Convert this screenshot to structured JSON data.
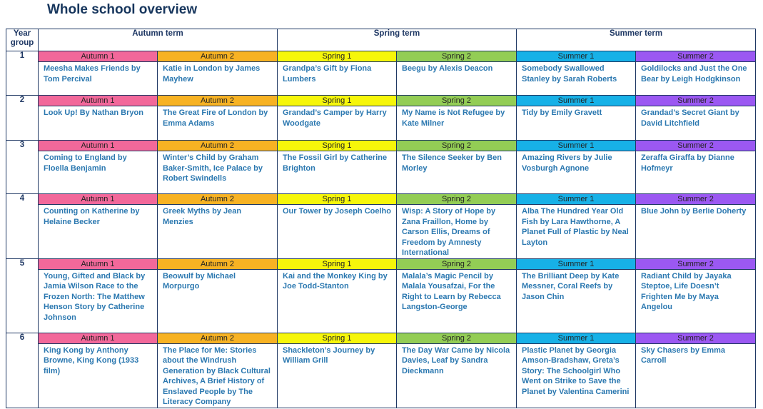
{
  "title": "Whole school overview",
  "headers": {
    "year_group": "Year group",
    "autumn": "Autumn term",
    "spring": "Spring term",
    "summer": "Summer term"
  },
  "half_terms": [
    "Autumn 1",
    "Autumn 2",
    "Spring 1",
    "Spring 2",
    "Summer 1",
    "Summer 2"
  ],
  "colors": {
    "autumn1": "#f2689a",
    "autumn2": "#f7b223",
    "spring1": "#f6f60a",
    "spring2": "#93cd55",
    "summer1": "#17b1e7",
    "summer2": "#9b58f2",
    "book_text": "#2b78b0",
    "heading_text": "#1f3864"
  },
  "rows": [
    {
      "year": "1",
      "books": [
        "Meesha Makes Friends by Tom Percival",
        "Katie in London by James Mayhew",
        "Grandpa’s Gift by Fiona Lumbers",
        "Beegu by Alexis Deacon",
        "Somebody Swallowed Stanley by Sarah Roberts",
        "Goldilocks and Just the One Bear by Leigh Hodgkinson"
      ]
    },
    {
      "year": "2",
      "books": [
        "Look Up! By Nathan Bryon",
        "The Great Fire of London by Emma Adams",
        "Grandad’s Camper by Harry Woodgate",
        "My Name is Not Refugee by Kate Milner",
        "Tidy by Emily Gravett",
        "Grandad’s Secret Giant by David Litchfield"
      ]
    },
    {
      "year": "3",
      "books": [
        "Coming to England by Floella Benjamin",
        "Winter’s Child by Graham Baker-Smith, Ice Palace by Robert Swindells",
        "The Fossil Girl by Catherine Brighton",
        "The Silence Seeker by Ben Morley",
        "Amazing Rivers by Julie Vosburgh Agnone",
        "Zeraffa Giraffa by Dianne Hofmeyr"
      ]
    },
    {
      "year": "4",
      "books": [
        "Counting on Katherine by Helaine Becker",
        "Greek Myths by Jean Menzies",
        "Our Tower by Joseph Coelho",
        "Wisp: A Story of Hope by Zana Fraillon, Home by Carson Ellis, Dreams of Freedom by Amnesty International",
        "Alba The Hundred Year Old Fish by Lara Hawthorne, A Planet Full of Plastic by Neal Layton",
        "Blue John by Berlie Doherty"
      ]
    },
    {
      "year": "5",
      "books": [
        "Young, Gifted and Black by Jamia Wilson Race to the Frozen North: The Matthew Henson Story by Catherine Johnson",
        "Beowulf by Michael Morpurgo",
        "Kai and the Monkey King by Joe Todd-Stanton",
        "Malala’s Magic Pencil by Malala Yousafzai, For the Right to Learn by Rebecca Langston-George",
        "The Brilliant Deep by Kate Messner, Coral Reefs by Jason Chin",
        "Radiant Child by Jayaka Steptoe, Life Doesn’t Frighten Me by Maya Angelou"
      ]
    },
    {
      "year": "6",
      "books": [
        "King Kong by Anthony Browne, King Kong (1933 film)",
        "The Place for Me: Stories about the Windrush Generation by Black Cultural Archives, A Brief History of Enslaved People by The Literacy Company",
        "Shackleton’s Journey by William Grill",
        "The Day War Came by Nicola Davies, Leaf by Sandra Dieckmann",
        "Plastic Planet by Georgia Amson-Bradshaw, Greta’s Story: The Schoolgirl Who Went on Strike to Save the Planet by Valentina Camerini",
        "Sky Chasers by Emma Carroll"
      ]
    }
  ]
}
